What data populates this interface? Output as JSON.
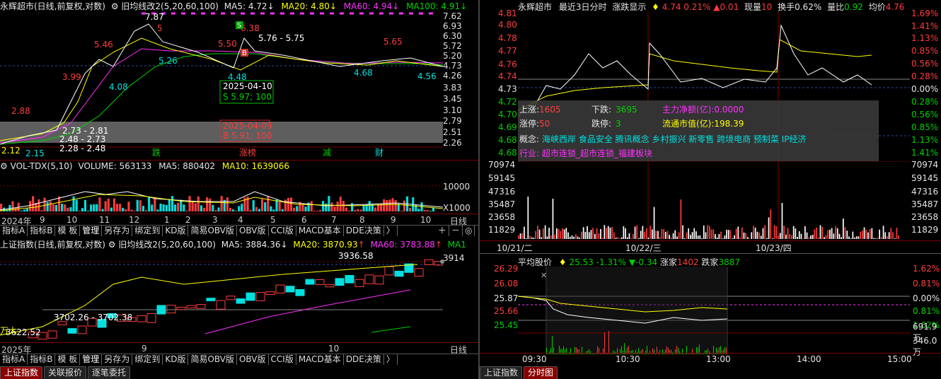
{
  "colors": {
    "up": "#ff3c3c",
    "down": "#00d200",
    "ma5": "#ffffff",
    "ma20": "#ffff00",
    "ma60": "#ff30ff",
    "ma100": "#00d200",
    "grid": "#7a0000"
  },
  "left_top": {
    "title": "永辉超市(日线,前复权,对数)",
    "indicator": "旧均线改2(5,20,60,100)",
    "ma5": "MA5: 4.72",
    "ma20": "MA20: 4.80",
    "ma60": "MA60: 4.94",
    "ma100": "MA100: 4.91",
    "yticks": [
      "7.62",
      "6.93",
      "6.30",
      "5.72",
      "5.20",
      "4.73",
      "4.26",
      "3.83",
      "3.45",
      "3.10",
      "2.79",
      "2.51",
      "2.26"
    ],
    "labels": {
      "p288": "2.88",
      "p399": "3.99",
      "p546": "5.46",
      "p787": "7.87",
      "p5": "5",
      "p408": "4.08",
      "p526": "5.26",
      "p550": "5.50",
      "p638": "6.38",
      "range_hi": "5.76 - 5.75",
      "p448": "4.48",
      "p565": "5.65",
      "p468": "4.68",
      "p456": "4.56",
      "r1": "2.73 - 2.81",
      "r2": "2.48 - 2.73",
      "r3": "2.28 - 2.48",
      "p215": "2.15",
      "p212": "2.12",
      "cut": "万大"
    },
    "trade_s": {
      "date": "2025-04-10",
      "text": "S 5.97; 100"
    },
    "trade_b": {
      "date": "2025-04-09",
      "text": "B 5.91; 100"
    },
    "events": [
      "跌",
      "涨榜",
      "减",
      "财"
    ]
  },
  "left_vol": {
    "title": "VOL-TDX(5,10)",
    "volume": "VOLUME: 563133",
    "ma5": "MA5: 880402",
    "ma10": "MA10: 1639066",
    "ytick": "10000",
    "unit": "X1000"
  },
  "left_xaxis1": {
    "labels": [
      "2024年",
      "9",
      "10",
      "11",
      "12",
      "1",
      "2",
      "3",
      "4",
      "5",
      "6",
      "7",
      "8",
      "9",
      "10"
    ],
    "right": "日线"
  },
  "tabs": [
    "指标A",
    "指标B",
    "模 板",
    "管理",
    "另存为",
    "绑定到",
    "KD版",
    "简易OBV版",
    "OBV版",
    "CCI版",
    "MACD基本",
    "DDE决策",
    "〉",
    "＋",
    "－",
    "◎"
  ],
  "left_bottom": {
    "title": "上证指数(日线,前复权,对数)",
    "indicator": "旧均线改2(5,20,60,100)",
    "ma5": "MA5: 3884.36",
    "ma20": "MA20: 3870.93",
    "ma60": "MA60: 3783.88",
    "ma100": "MA1",
    "ytick": "3914",
    "hi": "3936.58",
    "mid": "3702.26 - 3702.38",
    "lo": "3622.52",
    "cut": "万大"
  },
  "left_xaxis2": {
    "labels": [
      "2025年",
      "9",
      "10"
    ],
    "right": "日线"
  },
  "bottom_tabs_left": [
    "上证指数",
    "关联报价",
    "逐笔委托"
  ],
  "bottom_tabs_right": [
    "上证指数",
    "分时图"
  ],
  "right_top": {
    "name": "永辉超市",
    "period": "最近3日分时",
    "mode": "涨跌显示",
    "price": "4.74",
    "pct": "0.21%",
    "chg": "0.01",
    "now_label": "现量",
    "now": "10",
    "turn_label": "换手",
    "turn": "0.62%",
    "vr_label": "量比",
    "vr": "0.92",
    "avg_label": "均价",
    "avg": "4.76",
    "yleft": [
      "4.81",
      "4.80",
      "4.78",
      "4.77",
      "4.76",
      "4.74",
      "4.73",
      "4.72",
      "4.70",
      "4.69",
      "4.68",
      "4.68"
    ],
    "yright": [
      "1.69%",
      "1.41%",
      "1.13%",
      "0.85%",
      "0.56%",
      "0.28%",
      "0.00%",
      "0.28%",
      "0.56%",
      "0.85%",
      "1.13%",
      "1.41%"
    ],
    "vol_left": [
      "70974",
      "59145",
      "47316",
      "35487",
      "23658",
      "11829"
    ],
    "vol_right": [
      "70974",
      "59145",
      "47316",
      "35487",
      "23658",
      "11829"
    ],
    "dates": [
      "10/21/二",
      "10/22/三",
      "10/23/四"
    ]
  },
  "popup": {
    "up": "上涨:",
    "up_v": "1605",
    "down": "下跌:",
    "down_v": "3695",
    "net": "主力净额(亿):0.0000",
    "limup": "涨停:",
    "limup_v": "50",
    "limdn": "跌停:",
    "limdn_v": "3",
    "float": "流通市值(亿):198.39",
    "concept_label": "概念:",
    "concepts": "海峡西岸 食品安全 腾讯概念 乡村振兴 新零售 跨境电商 预制菜 IP经济",
    "industry_label": "行业:",
    "industry": "超市连锁_超市连锁_福建板块"
  },
  "right_bottom": {
    "title": "平均股价",
    "price": "25.53",
    "pct": "-1.31%",
    "chg": "-0.34",
    "up_label": "涨家",
    "up": "1402",
    "down_label": "跌家",
    "down": "3887",
    "yleft": [
      "26.29",
      "26.08",
      "25.87",
      "25.66",
      "25.45"
    ],
    "yright": [
      "1.62%",
      "0.81%",
      "0.00%",
      "0.81%",
      "1.62%"
    ],
    "vol": [
      "691.9万",
      "346.0万"
    ],
    "times": [
      "09:30",
      "10:30",
      "13:00",
      "14:00",
      "15:00"
    ]
  }
}
